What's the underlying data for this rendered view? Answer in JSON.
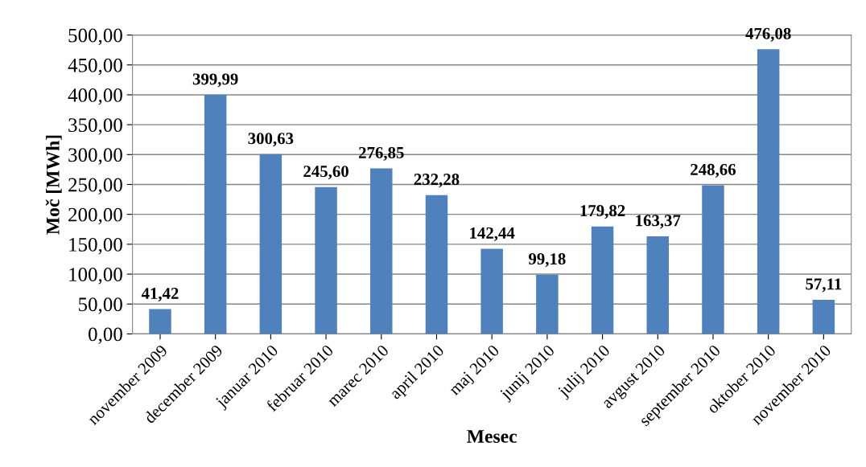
{
  "chart_data": {
    "type": "bar",
    "xlabel": "Mesec",
    "ylabel": "Moč [MWh]",
    "categories": [
      "november 2009",
      "december 2009",
      "januar 2010",
      "februar 2010",
      "marec 2010",
      "april 2010",
      "maj 2010",
      "junij 2010",
      "julij 2010",
      "avgust 2010",
      "september 2010",
      "oktober 2010",
      "november 2010"
    ],
    "values": [
      41.42,
      399.99,
      300.63,
      245.6,
      276.85,
      232.28,
      142.44,
      99.18,
      179.82,
      163.37,
      248.66,
      476.08,
      57.11
    ],
    "value_labels": [
      "41,42",
      "399,99",
      "300,63",
      "245,60",
      "276,85",
      "232,28",
      "142,44",
      "99,18",
      "179,82",
      "163,37",
      "248,66",
      "476,08",
      "57,11"
    ],
    "color": "#4f81bd",
    "ylim": [
      0,
      500
    ],
    "yticks": [
      {
        "value": 0,
        "label": "0,00"
      },
      {
        "value": 50,
        "label": "50,00"
      },
      {
        "value": 100,
        "label": "100,00"
      },
      {
        "value": 150,
        "label": "150,00"
      },
      {
        "value": 200,
        "label": "200,00"
      },
      {
        "value": 250,
        "label": "250,00"
      },
      {
        "value": 300,
        "label": "300,00"
      },
      {
        "value": 350,
        "label": "350,00"
      },
      {
        "value": 400,
        "label": "400,00"
      },
      {
        "value": 450,
        "label": "450,00"
      },
      {
        "value": 500,
        "label": "500,00"
      }
    ],
    "grid": "y"
  }
}
